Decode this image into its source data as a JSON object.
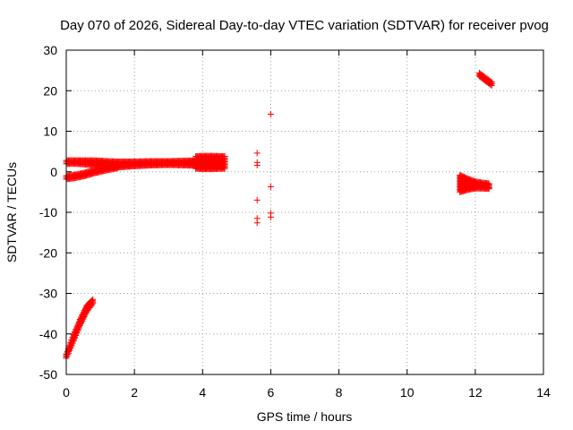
{
  "chart_data": {
    "type": "scatter",
    "title": "Day 070 of 2026, Sidereal Day-to-day VTEC variation (SDTVAR) for receiver pvog",
    "xlabel": "GPS time / hours",
    "ylabel": "SDTVAR / TECUs",
    "xlim": [
      0,
      14
    ],
    "ylim": [
      -50,
      30
    ],
    "xticks": [
      0,
      2,
      4,
      6,
      8,
      10,
      12,
      14
    ],
    "yticks": [
      -50,
      -40,
      -30,
      -20,
      -10,
      0,
      10,
      20,
      30
    ],
    "grid": true,
    "marker": "+",
    "color": "#ff0000",
    "bands": [
      {
        "x": [
          0.0,
          0.15,
          0.3,
          0.45,
          0.6,
          0.8,
          1.0,
          1.2,
          1.5,
          2.0,
          2.5,
          3.0,
          3.5,
          3.8
        ],
        "ymin": [
          2.0,
          2.0,
          2.0,
          1.9,
          1.8,
          1.6,
          1.3,
          1.1,
          1.1,
          1.4,
          1.6,
          1.7,
          1.6,
          1.5
        ],
        "ymax": [
          2.8,
          2.8,
          2.8,
          2.8,
          2.8,
          2.8,
          2.7,
          2.6,
          2.5,
          2.5,
          2.6,
          2.6,
          2.7,
          2.8
        ]
      },
      {
        "x": [
          0.0,
          0.2,
          0.4,
          0.6,
          0.8,
          1.0,
          1.2,
          1.5
        ],
        "ymin": [
          -1.8,
          -1.6,
          -1.3,
          -0.9,
          -0.4,
          0.0,
          0.4,
          0.9
        ],
        "ymax": [
          -1.0,
          -0.8,
          -0.5,
          -0.1,
          0.4,
          0.8,
          1.2,
          1.7
        ]
      },
      {
        "x": [
          3.8,
          4.0,
          4.3,
          4.6,
          4.65
        ],
        "ymin": [
          0.8,
          0.7,
          0.7,
          0.8,
          0.8
        ],
        "ymax": [
          3.8,
          3.9,
          3.9,
          3.8,
          3.8
        ]
      },
      {
        "x": [
          0.0,
          0.2,
          0.4,
          0.6,
          0.78
        ],
        "ymin": [
          -46.0,
          -42.0,
          -38.0,
          -34.5,
          -32.5
        ],
        "ymax": [
          -45.0,
          -40.5,
          -36.5,
          -33.0,
          -31.5
        ]
      },
      {
        "x": [
          11.55,
          11.8,
          12.0,
          12.2,
          12.4
        ],
        "ymin": [
          -5.0,
          -4.4,
          -4.1,
          -4.1,
          -4.2
        ],
        "ymax": [
          -0.8,
          -1.8,
          -2.4,
          -2.7,
          -2.9
        ]
      },
      {
        "x": [
          12.12,
          12.3,
          12.48
        ],
        "ymin": [
          23.6,
          22.4,
          21.3
        ],
        "ymax": [
          24.4,
          23.2,
          22.1
        ]
      }
    ],
    "points": [
      {
        "x": 5.6,
        "y": 4.6
      },
      {
        "x": 5.6,
        "y": 2.3
      },
      {
        "x": 5.6,
        "y": 1.6
      },
      {
        "x": 5.6,
        "y": -7.0
      },
      {
        "x": 5.6,
        "y": -11.5
      },
      {
        "x": 5.6,
        "y": -12.6
      },
      {
        "x": 6.0,
        "y": 14.2
      },
      {
        "x": 6.0,
        "y": -3.7
      },
      {
        "x": 6.0,
        "y": -10.2
      },
      {
        "x": 6.0,
        "y": -11.2
      },
      {
        "x": 12.4,
        "y": -3.2
      },
      {
        "x": 12.4,
        "y": -4.0
      }
    ]
  }
}
